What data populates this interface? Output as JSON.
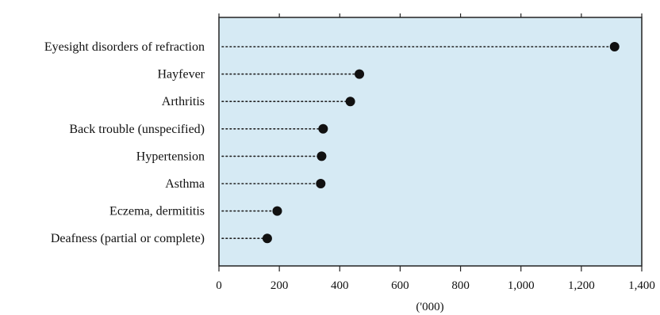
{
  "chart_data": {
    "type": "dot",
    "categories": [
      "Eyesight disorders of refraction",
      "Hayfever",
      "Arthritis",
      "Back trouble (unspecified)",
      "Hypertension",
      "Asthma",
      "Eczema, dermititis",
      "Deafness (partial or complete)"
    ],
    "values": [
      1310,
      465,
      435,
      345,
      340,
      337,
      193,
      160
    ],
    "xlabel": "('000)",
    "xlim": [
      0,
      1400
    ],
    "xticks": [
      0,
      200,
      400,
      600,
      800,
      1000,
      1200,
      1400
    ],
    "xtick_labels": [
      "0",
      "200",
      "400",
      "600",
      "800",
      "1,000",
      "1,200",
      "1,400"
    ],
    "grid": false,
    "colors": {
      "plot_background": "#d6eaf4",
      "marker": "#111111",
      "leader_line": "#222222",
      "frame": "#222222"
    }
  }
}
